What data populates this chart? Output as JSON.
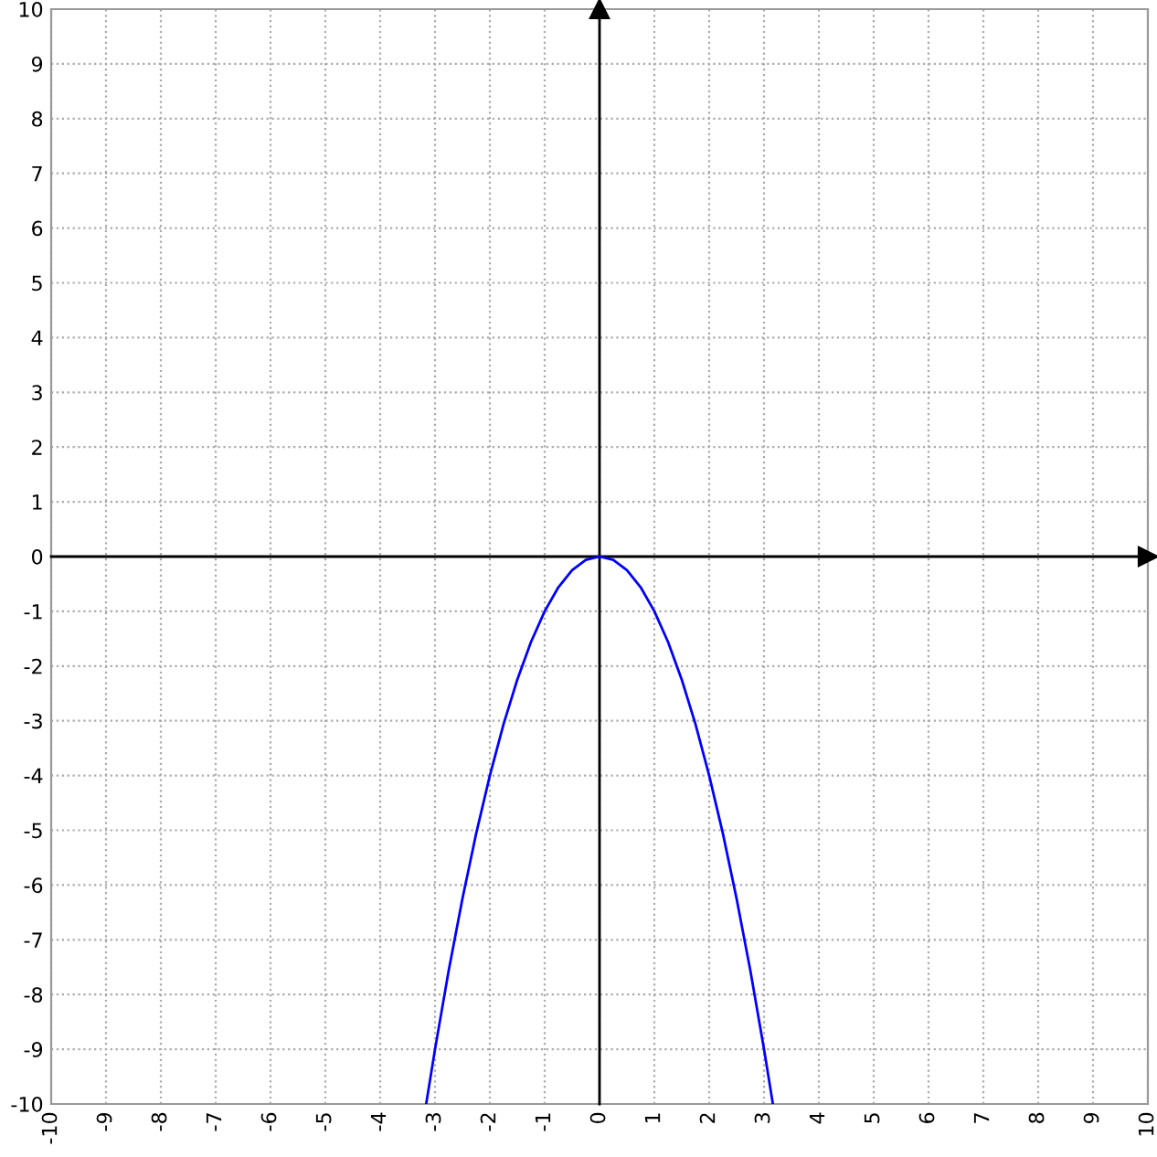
{
  "chart_data": {
    "type": "line",
    "x": [
      -3.16,
      -3,
      -2.75,
      -2.5,
      -2.25,
      -2,
      -1.75,
      -1.5,
      -1.25,
      -1,
      -0.75,
      -0.5,
      -0.25,
      0,
      0.25,
      0.5,
      0.75,
      1,
      1.25,
      1.5,
      1.75,
      2,
      2.25,
      2.5,
      2.75,
      3,
      3.16
    ],
    "series": [
      {
        "color": "#0000ff",
        "values": [
          -9.99,
          -9,
          -7.56,
          -6.25,
          -5.06,
          -4,
          -3.06,
          -2.25,
          -1.56,
          -1,
          -0.56,
          -0.25,
          -0.06,
          0,
          -0.06,
          -0.25,
          -0.56,
          -1,
          -1.56,
          -2.25,
          -3.06,
          -4,
          -5.06,
          -6.25,
          -7.56,
          -9,
          -9.99
        ]
      }
    ],
    "xlim": [
      -10,
      10
    ],
    "ylim": [
      -10,
      10
    ],
    "xticks": [
      -10,
      -9,
      -8,
      -7,
      -6,
      -5,
      -4,
      -3,
      -2,
      -1,
      0,
      1,
      2,
      3,
      4,
      5,
      6,
      7,
      8,
      9,
      10
    ],
    "yticks": [
      -10,
      -9,
      -8,
      -7,
      -6,
      -5,
      -4,
      -3,
      -2,
      -1,
      0,
      1,
      2,
      3,
      4,
      5,
      6,
      7,
      8,
      9,
      10
    ],
    "grid": true,
    "line_style": "solid",
    "marker": "none"
  }
}
